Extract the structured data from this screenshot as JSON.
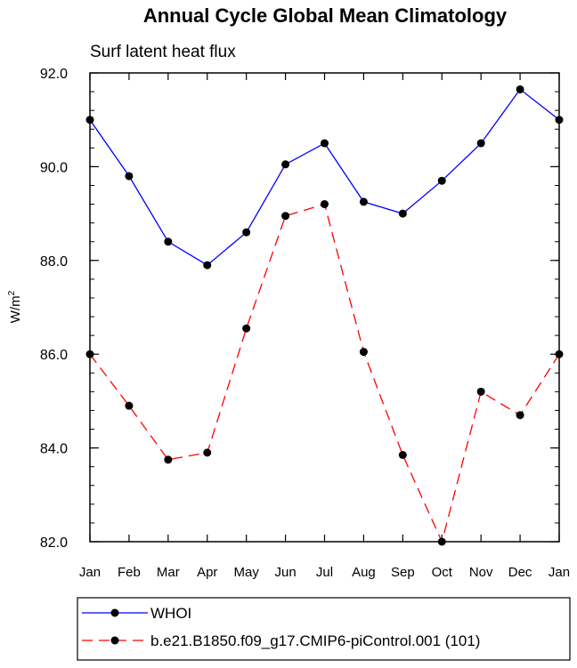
{
  "chart_data": {
    "type": "line",
    "title": "Annual Cycle Global Mean Climatology",
    "subtitle": "Surf latent heat flux",
    "ylabel": "W/m",
    "ylabel_superscript": "2",
    "xlabel": "",
    "categories": [
      "Jan",
      "Feb",
      "Mar",
      "Apr",
      "May",
      "Jun",
      "Jul",
      "Aug",
      "Sep",
      "Oct",
      "Nov",
      "Dec",
      "Jan"
    ],
    "ylim": [
      82.0,
      92.0
    ],
    "yticks": [
      "82.0",
      "84.0",
      "86.0",
      "88.0",
      "90.0",
      "92.0"
    ],
    "grid": false,
    "legend_position": "bottom",
    "series": [
      {
        "name": "WHOI",
        "color": "#0000ff",
        "style": "solid",
        "marker": "dot",
        "values": [
          91.0,
          89.8,
          88.4,
          87.9,
          88.6,
          90.05,
          90.5,
          89.25,
          89.0,
          89.7,
          90.5,
          91.65,
          91.0
        ]
      },
      {
        "name": "b.e21.B1850.f09_g17.CMIP6-piControl.001 (101)",
        "color": "#ff0000",
        "style": "dashed",
        "marker": "dot",
        "values": [
          86.0,
          84.9,
          83.75,
          83.9,
          86.55,
          88.95,
          89.2,
          86.05,
          83.85,
          82.0,
          85.2,
          84.7,
          86.0
        ]
      }
    ]
  }
}
